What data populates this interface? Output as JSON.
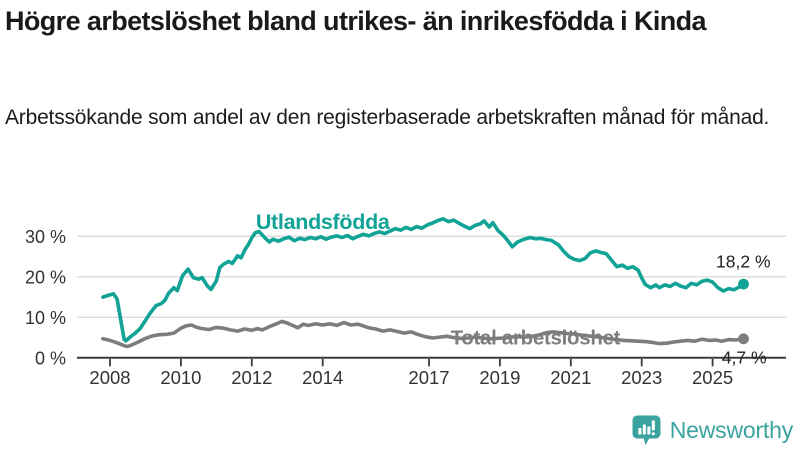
{
  "header": {
    "title": "Högre arbetslöshet bland utrikes- än inrikesfödda i Kinda",
    "subtitle": "Arbetssökande som andel av den registerbaserade arbetskraften månad för månad."
  },
  "footer": {
    "brand": "Newsworthy",
    "logo_icon": "speech-bubble-bar-chart-icon"
  },
  "colors": {
    "accent_teal": "#10A396",
    "logo_teal": "#3BA39E",
    "series_gray": "#7D7D7D",
    "grid": "#DBDBDB",
    "axis": "#3B3B3B",
    "tick_text": "#333333",
    "annotation_text": "#222222"
  },
  "chart_data": {
    "type": "line",
    "title": "Högre arbetslöshet bland utrikes- än inrikesfödda i Kinda",
    "xlabel": "",
    "ylabel": "",
    "grid": "horizontal",
    "legend_position": "inline-labels",
    "xlim": [
      2007.07,
      2027.07
    ],
    "ylim": [
      0,
      36.5
    ],
    "x_tick_years": [
      2008,
      2010,
      2012,
      2014,
      2017,
      2019,
      2021,
      2023,
      2025
    ],
    "x_tick_labels": [
      "2008",
      "2010",
      "2012",
      "2014",
      "2017",
      "2019",
      "2021",
      "2023",
      "2025"
    ],
    "y_ticks": [
      0,
      10,
      20,
      30
    ],
    "y_tick_labels": [
      "0 %",
      "10 %",
      "20 %",
      "30 %"
    ],
    "series": [
      {
        "name": "Utlandsfödda",
        "color": "#10A396",
        "end_label": "18,2 %",
        "end_value": 18.2,
        "label_year": 2014.0,
        "label_pct": 33.5,
        "points": [
          [
            2007.8,
            15.0
          ],
          [
            2007.95,
            15.4
          ],
          [
            2008.1,
            15.8
          ],
          [
            2008.2,
            14.5
          ],
          [
            2008.3,
            9.5
          ],
          [
            2008.4,
            4.6
          ],
          [
            2008.45,
            4.2
          ],
          [
            2008.55,
            5.0
          ],
          [
            2008.7,
            6.0
          ],
          [
            2008.85,
            7.2
          ],
          [
            2009.0,
            9.2
          ],
          [
            2009.15,
            11.2
          ],
          [
            2009.3,
            12.9
          ],
          [
            2009.45,
            13.4
          ],
          [
            2009.55,
            14.2
          ],
          [
            2009.65,
            15.9
          ],
          [
            2009.8,
            17.3
          ],
          [
            2009.9,
            16.6
          ],
          [
            2010.05,
            20.3
          ],
          [
            2010.2,
            21.9
          ],
          [
            2010.35,
            19.8
          ],
          [
            2010.5,
            19.4
          ],
          [
            2010.6,
            19.8
          ],
          [
            2010.75,
            17.7
          ],
          [
            2010.85,
            16.9
          ],
          [
            2011.0,
            19.0
          ],
          [
            2011.1,
            22.3
          ],
          [
            2011.2,
            23.1
          ],
          [
            2011.35,
            23.8
          ],
          [
            2011.45,
            23.3
          ],
          [
            2011.6,
            25.2
          ],
          [
            2011.7,
            24.7
          ],
          [
            2011.8,
            26.6
          ],
          [
            2011.9,
            27.9
          ],
          [
            2012.0,
            29.6
          ],
          [
            2012.1,
            30.9
          ],
          [
            2012.2,
            31.2
          ],
          [
            2012.3,
            30.3
          ],
          [
            2012.4,
            29.4
          ],
          [
            2012.5,
            28.6
          ],
          [
            2012.6,
            29.3
          ],
          [
            2012.75,
            28.8
          ],
          [
            2012.9,
            29.4
          ],
          [
            2013.05,
            29.8
          ],
          [
            2013.2,
            28.9
          ],
          [
            2013.35,
            29.5
          ],
          [
            2013.5,
            29.2
          ],
          [
            2013.65,
            29.7
          ],
          [
            2013.8,
            29.4
          ],
          [
            2013.95,
            29.9
          ],
          [
            2014.1,
            29.3
          ],
          [
            2014.25,
            29.8
          ],
          [
            2014.4,
            30.1
          ],
          [
            2014.55,
            29.7
          ],
          [
            2014.7,
            30.2
          ],
          [
            2014.85,
            29.4
          ],
          [
            2015.0,
            30.0
          ],
          [
            2015.15,
            30.5
          ],
          [
            2015.3,
            30.1
          ],
          [
            2015.45,
            30.7
          ],
          [
            2015.6,
            31.1
          ],
          [
            2015.75,
            30.7
          ],
          [
            2015.9,
            31.3
          ],
          [
            2016.05,
            31.9
          ],
          [
            2016.2,
            31.5
          ],
          [
            2016.35,
            32.2
          ],
          [
            2016.5,
            31.7
          ],
          [
            2016.65,
            32.4
          ],
          [
            2016.8,
            32.0
          ],
          [
            2016.95,
            32.8
          ],
          [
            2017.1,
            33.3
          ],
          [
            2017.25,
            33.9
          ],
          [
            2017.4,
            34.3
          ],
          [
            2017.55,
            33.6
          ],
          [
            2017.7,
            34.0
          ],
          [
            2017.85,
            33.2
          ],
          [
            2018.0,
            32.5
          ],
          [
            2018.15,
            31.9
          ],
          [
            2018.3,
            32.7
          ],
          [
            2018.45,
            33.1
          ],
          [
            2018.55,
            33.8
          ],
          [
            2018.7,
            32.3
          ],
          [
            2018.8,
            33.4
          ],
          [
            2018.95,
            31.4
          ],
          [
            2019.1,
            30.2
          ],
          [
            2019.25,
            28.6
          ],
          [
            2019.35,
            27.4
          ],
          [
            2019.5,
            28.6
          ],
          [
            2019.65,
            29.2
          ],
          [
            2019.85,
            29.7
          ],
          [
            2020.0,
            29.4
          ],
          [
            2020.15,
            29.5
          ],
          [
            2020.3,
            29.2
          ],
          [
            2020.45,
            29.0
          ],
          [
            2020.65,
            27.9
          ],
          [
            2020.8,
            26.3
          ],
          [
            2020.95,
            25.0
          ],
          [
            2021.1,
            24.3
          ],
          [
            2021.25,
            24.0
          ],
          [
            2021.4,
            24.5
          ],
          [
            2021.55,
            25.9
          ],
          [
            2021.7,
            26.4
          ],
          [
            2021.85,
            26.0
          ],
          [
            2022.0,
            25.7
          ],
          [
            2022.15,
            24.1
          ],
          [
            2022.3,
            22.5
          ],
          [
            2022.45,
            22.9
          ],
          [
            2022.6,
            22.1
          ],
          [
            2022.75,
            22.5
          ],
          [
            2022.9,
            21.6
          ],
          [
            2023.0,
            19.7
          ],
          [
            2023.1,
            18.1
          ],
          [
            2023.25,
            17.3
          ],
          [
            2023.4,
            18.0
          ],
          [
            2023.5,
            17.3
          ],
          [
            2023.65,
            18.0
          ],
          [
            2023.8,
            17.6
          ],
          [
            2023.95,
            18.4
          ],
          [
            2024.1,
            17.7
          ],
          [
            2024.25,
            17.3
          ],
          [
            2024.4,
            18.4
          ],
          [
            2024.55,
            18.0
          ],
          [
            2024.7,
            18.9
          ],
          [
            2024.85,
            19.2
          ],
          [
            2025.0,
            18.7
          ],
          [
            2025.15,
            17.3
          ],
          [
            2025.3,
            16.5
          ],
          [
            2025.45,
            17.1
          ],
          [
            2025.6,
            16.8
          ],
          [
            2025.75,
            17.5
          ],
          [
            2025.87,
            18.2
          ]
        ]
      },
      {
        "name": "Total arbetslöshet",
        "color": "#7D7D7D",
        "end_label": "4,7 %",
        "end_value": 4.7,
        "label_year": 2020.0,
        "label_pct": 5.0,
        "points": [
          [
            2007.8,
            4.7
          ],
          [
            2008.0,
            4.3
          ],
          [
            2008.2,
            3.7
          ],
          [
            2008.4,
            3.0
          ],
          [
            2008.5,
            2.8
          ],
          [
            2008.65,
            3.3
          ],
          [
            2008.8,
            3.9
          ],
          [
            2009.0,
            4.8
          ],
          [
            2009.2,
            5.4
          ],
          [
            2009.4,
            5.7
          ],
          [
            2009.6,
            5.8
          ],
          [
            2009.8,
            6.1
          ],
          [
            2010.0,
            7.3
          ],
          [
            2010.15,
            7.9
          ],
          [
            2010.3,
            8.1
          ],
          [
            2010.45,
            7.5
          ],
          [
            2010.6,
            7.2
          ],
          [
            2010.8,
            7.0
          ],
          [
            2011.0,
            7.5
          ],
          [
            2011.2,
            7.3
          ],
          [
            2011.4,
            6.9
          ],
          [
            2011.6,
            6.6
          ],
          [
            2011.8,
            7.1
          ],
          [
            2012.0,
            6.8
          ],
          [
            2012.15,
            7.2
          ],
          [
            2012.3,
            6.9
          ],
          [
            2012.5,
            7.7
          ],
          [
            2012.7,
            8.4
          ],
          [
            2012.85,
            9.0
          ],
          [
            2013.0,
            8.6
          ],
          [
            2013.15,
            8.0
          ],
          [
            2013.3,
            7.4
          ],
          [
            2013.45,
            8.3
          ],
          [
            2013.6,
            8.0
          ],
          [
            2013.8,
            8.4
          ],
          [
            2014.0,
            8.1
          ],
          [
            2014.2,
            8.4
          ],
          [
            2014.4,
            8.0
          ],
          [
            2014.6,
            8.7
          ],
          [
            2014.8,
            8.1
          ],
          [
            2015.0,
            8.3
          ],
          [
            2015.2,
            7.7
          ],
          [
            2015.35,
            7.3
          ],
          [
            2015.5,
            7.1
          ],
          [
            2015.7,
            6.6
          ],
          [
            2015.9,
            6.9
          ],
          [
            2016.1,
            6.5
          ],
          [
            2016.3,
            6.1
          ],
          [
            2016.5,
            6.4
          ],
          [
            2016.7,
            5.7
          ],
          [
            2016.9,
            5.2
          ],
          [
            2017.1,
            4.9
          ],
          [
            2017.3,
            5.1
          ],
          [
            2017.5,
            5.3
          ],
          [
            2017.7,
            5.0
          ],
          [
            2017.9,
            4.8
          ],
          [
            2018.1,
            4.9
          ],
          [
            2018.3,
            5.1
          ],
          [
            2018.5,
            4.9
          ],
          [
            2018.7,
            4.7
          ],
          [
            2018.9,
            4.8
          ],
          [
            2019.1,
            4.9
          ],
          [
            2019.3,
            5.1
          ],
          [
            2019.5,
            5.2
          ],
          [
            2019.7,
            5.1
          ],
          [
            2019.9,
            5.3
          ],
          [
            2020.1,
            5.6
          ],
          [
            2020.3,
            6.2
          ],
          [
            2020.5,
            6.4
          ],
          [
            2020.7,
            6.2
          ],
          [
            2020.9,
            6.0
          ],
          [
            2021.1,
            5.9
          ],
          [
            2021.3,
            5.6
          ],
          [
            2021.5,
            5.4
          ],
          [
            2021.7,
            5.2
          ],
          [
            2021.9,
            5.0
          ],
          [
            2022.1,
            4.7
          ],
          [
            2022.3,
            4.5
          ],
          [
            2022.5,
            4.3
          ],
          [
            2022.7,
            4.2
          ],
          [
            2022.9,
            4.1
          ],
          [
            2023.1,
            4.0
          ],
          [
            2023.3,
            3.8
          ],
          [
            2023.5,
            3.5
          ],
          [
            2023.7,
            3.6
          ],
          [
            2023.9,
            3.9
          ],
          [
            2024.1,
            4.1
          ],
          [
            2024.3,
            4.3
          ],
          [
            2024.5,
            4.1
          ],
          [
            2024.7,
            4.6
          ],
          [
            2024.9,
            4.3
          ],
          [
            2025.1,
            4.4
          ],
          [
            2025.25,
            4.1
          ],
          [
            2025.45,
            4.5
          ],
          [
            2025.65,
            4.4
          ],
          [
            2025.87,
            4.7
          ]
        ]
      }
    ]
  }
}
